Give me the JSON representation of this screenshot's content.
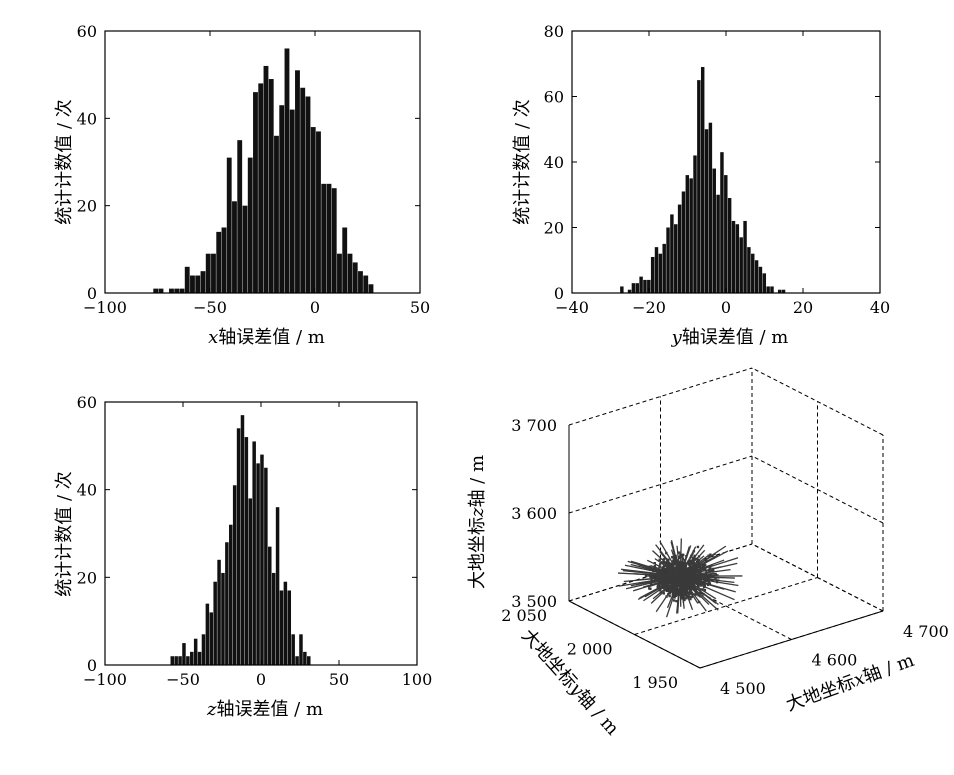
{
  "chart_data": [
    {
      "type": "bar",
      "xlabel": "x轴误差值 / m",
      "xlabel_parts": {
        "var": "x",
        "rest": "轴误差值 / m"
      },
      "ylabel": "统计计数值 / 次",
      "xlim": [
        -100,
        50
      ],
      "ylim": [
        0,
        60
      ],
      "xticks": [
        "−100",
        "−50",
        "0",
        "50"
      ],
      "xtick_values": [
        -100,
        -50,
        0,
        50
      ],
      "yticks": [
        "0",
        "20",
        "40",
        "60"
      ],
      "ytick_values": [
        0,
        20,
        40,
        60
      ],
      "bin_start": -77,
      "bin_width": 2.5,
      "values": [
        1,
        1,
        0,
        1,
        1,
        1,
        6,
        4,
        4,
        5,
        9,
        9,
        14,
        15,
        31,
        21,
        35,
        20,
        31,
        46,
        48,
        52,
        49,
        36,
        43,
        56,
        42,
        51,
        47,
        45,
        38,
        37,
        25,
        25,
        24,
        9,
        15,
        9,
        7,
        5,
        4,
        2
      ]
    },
    {
      "type": "bar",
      "xlabel": "y轴误差值 / m",
      "xlabel_parts": {
        "var": "y",
        "rest": "轴误差值 / m"
      },
      "ylabel": "统计计数值 / 次",
      "xlim": [
        -40,
        40
      ],
      "ylim": [
        0,
        80
      ],
      "xticks": [
        "−40",
        "−20",
        "0",
        "20",
        "40"
      ],
      "xtick_values": [
        -40,
        -20,
        0,
        20,
        40
      ],
      "yticks": [
        "0",
        "20",
        "40",
        "60",
        "80"
      ],
      "ytick_values": [
        0,
        20,
        40,
        60,
        80
      ],
      "bin_start": -27.5,
      "bin_width": 1,
      "values": [
        2,
        0,
        1,
        3,
        3,
        5,
        4,
        4,
        11,
        14,
        12,
        15,
        20,
        24,
        21,
        27,
        31,
        36,
        35,
        42,
        65,
        69,
        50,
        52,
        38,
        30,
        43,
        36,
        29,
        22,
        21,
        17,
        22,
        14,
        12,
        10,
        8,
        6,
        2,
        2,
        0,
        1,
        1
      ]
    },
    {
      "type": "bar",
      "xlabel": "z轴误差值 / m",
      "xlabel_parts": {
        "var": "z",
        "rest": "轴误差值 / m"
      },
      "ylabel": "统计计数值 / 次",
      "xlim": [
        -100,
        100
      ],
      "ylim": [
        0,
        60
      ],
      "xticks": [
        "−100",
        "−50",
        "0",
        "50",
        "100"
      ],
      "xtick_values": [
        -100,
        -50,
        0,
        50,
        100
      ],
      "yticks": [
        "0",
        "20",
        "40",
        "60"
      ],
      "ytick_values": [
        0,
        20,
        40,
        60
      ],
      "bin_start": -58,
      "bin_width": 2.5,
      "values": [
        2,
        2,
        2,
        5,
        2,
        3,
        6,
        3,
        7,
        14,
        12,
        19,
        24,
        21,
        28,
        32,
        41,
        54,
        57,
        52,
        38,
        51,
        46,
        48,
        45,
        27,
        21,
        36,
        17,
        19,
        17,
        7,
        2,
        7,
        3,
        2
      ]
    },
    {
      "type": "scatter3d",
      "xlabel": "大地坐标x轴 / m",
      "ylabel": "大地坐标y轴 / m",
      "zlabel": "大地坐标z轴 / m",
      "xlabel_parts": {
        "pre": "大地坐标",
        "var": "x",
        "rest": "轴 / m"
      },
      "ylabel_parts": {
        "pre": "大地坐标",
        "var": "y",
        "rest": "轴 / m"
      },
      "zlabel_parts": {
        "pre": "大地坐标",
        "var": "z",
        "rest": "轴 / m"
      },
      "xticks": [
        "4 500",
        "4 600",
        "4 700"
      ],
      "yticks": [
        "1 950",
        "2 000",
        "2 050"
      ],
      "zticks": [
        "3 500",
        "3 600",
        "3 700"
      ],
      "xlim": [
        4500,
        4700
      ],
      "ylim": [
        1950,
        2050
      ],
      "zlim": [
        3500,
        3700
      ],
      "cluster_center": {
        "x": 4550,
        "y": 2000,
        "z": 3550
      },
      "grid": true,
      "marker_color": "#3a3a3a"
    }
  ]
}
